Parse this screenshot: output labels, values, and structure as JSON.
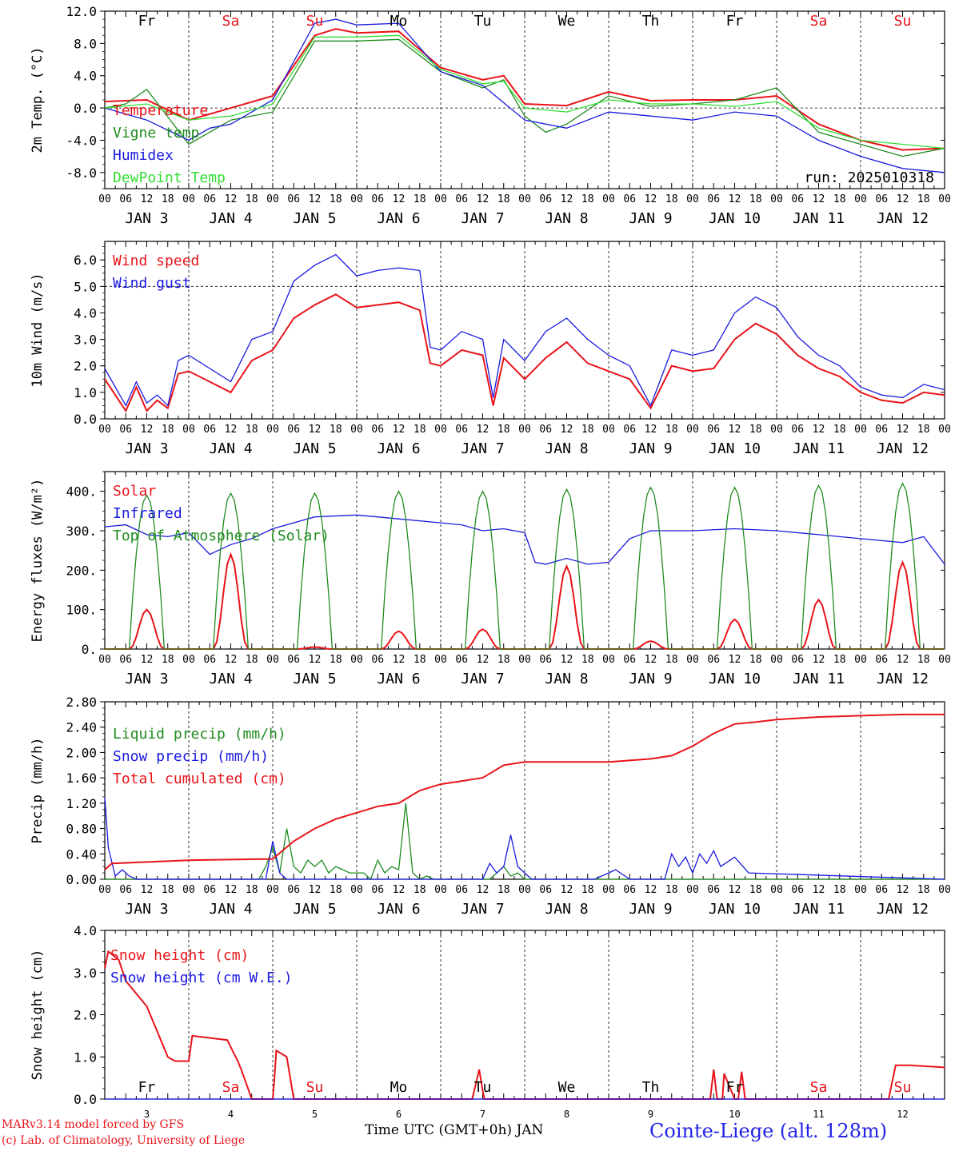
{
  "colors": {
    "red": "#e8141a",
    "green": "#1f8c1f",
    "blue": "#1a1ae0",
    "lightgreen": "#33dd33",
    "weekend": "#e8141a",
    "weekday": "#000000",
    "station": "#2323e6"
  },
  "days": [
    {
      "abbr": "Fr",
      "weekend": false,
      "date": "JAN   3",
      "num": "3"
    },
    {
      "abbr": "Sa",
      "weekend": true,
      "date": "JAN   4",
      "num": "4"
    },
    {
      "abbr": "Su",
      "weekend": true,
      "date": "JAN   5",
      "num": "5"
    },
    {
      "abbr": "Mo",
      "weekend": false,
      "date": "JAN   6",
      "num": "6"
    },
    {
      "abbr": "Tu",
      "weekend": false,
      "date": "JAN   7",
      "num": "7"
    },
    {
      "abbr": "We",
      "weekend": false,
      "date": "JAN   8",
      "num": "8"
    },
    {
      "abbr": "Th",
      "weekend": false,
      "date": "JAN   9",
      "num": "9"
    },
    {
      "abbr": "Fr",
      "weekend": false,
      "date": "JAN  10",
      "num": "10"
    },
    {
      "abbr": "Sa",
      "weekend": true,
      "date": "JAN  11",
      "num": "11"
    },
    {
      "abbr": "Su",
      "weekend": true,
      "date": "JAN  12",
      "num": "12"
    }
  ],
  "hour_ticks": [
    "00",
    "06",
    "12",
    "18"
  ],
  "chart_data": [
    {
      "type": "line",
      "ylabel": "2m Temp. (°C)",
      "ylim": [
        -10,
        12
      ],
      "yticks": [
        -8,
        -4,
        0,
        4,
        8,
        12
      ],
      "ytick_labels": [
        "-8.0",
        "-4.0",
        "0.0",
        "4.0",
        "8.0",
        "12.0"
      ],
      "ref_line": 0,
      "run_label": "run: 2025010318",
      "x_unit": "hours since JAN 3 00 UTC",
      "series": [
        {
          "name": "Temperature",
          "color": "red",
          "x": [
            0,
            12,
            24,
            36,
            48,
            60,
            66,
            72,
            84,
            96,
            108,
            114,
            120,
            132,
            144,
            156,
            168,
            180,
            192,
            204,
            216,
            228,
            240
          ],
          "values": [
            0.8,
            1.0,
            -1.5,
            0.0,
            1.5,
            9.0,
            9.8,
            9.3,
            9.5,
            5.0,
            3.5,
            4.0,
            0.5,
            0.3,
            2.0,
            0.9,
            1.0,
            1.0,
            1.5,
            -2.0,
            -4.0,
            -5.2,
            -5.0
          ]
        },
        {
          "name": "Vigne temp",
          "color": "green",
          "x": [
            0,
            6,
            12,
            24,
            36,
            48,
            60,
            72,
            84,
            96,
            108,
            114,
            120,
            126,
            132,
            144,
            156,
            168,
            180,
            192,
            204,
            216,
            228,
            240
          ],
          "values": [
            0.0,
            0.5,
            2.3,
            -4.5,
            -1.5,
            -0.5,
            8.3,
            8.3,
            8.5,
            4.5,
            2.5,
            3.5,
            -1.0,
            -3.0,
            -2.0,
            1.5,
            0.2,
            0.5,
            1.0,
            2.5,
            -3.0,
            -4.5,
            -6.0,
            -5.0
          ]
        },
        {
          "name": "Humidex",
          "color": "blue",
          "x": [
            0,
            12,
            24,
            30,
            36,
            48,
            60,
            66,
            72,
            84,
            96,
            108,
            120,
            132,
            144,
            156,
            168,
            180,
            192,
            204,
            216,
            228,
            240
          ],
          "values": [
            0.0,
            -1.5,
            -4.0,
            -2.5,
            -2.0,
            1.0,
            10.5,
            11.0,
            10.3,
            10.5,
            4.5,
            2.8,
            -1.5,
            -2.5,
            -0.5,
            -1.0,
            -1.5,
            -0.5,
            -1.0,
            -4.0,
            -6.0,
            -7.5,
            -8.0
          ]
        },
        {
          "name": "DewPoint Temp",
          "color": "lightgreen",
          "x": [
            0,
            12,
            24,
            36,
            48,
            60,
            72,
            84,
            96,
            108,
            114,
            120,
            132,
            144,
            156,
            168,
            180,
            192,
            204,
            216,
            228,
            240
          ],
          "values": [
            0.0,
            0.5,
            -1.5,
            -1.0,
            0.5,
            8.8,
            8.8,
            9.0,
            4.8,
            3.0,
            3.3,
            0.0,
            -0.5,
            1.0,
            0.5,
            0.5,
            0.2,
            0.8,
            -2.5,
            -4.0,
            -4.5,
            -5.0
          ]
        }
      ]
    },
    {
      "type": "line",
      "ylabel": "10m Wind (m/s)",
      "ylim": [
        0,
        6.7
      ],
      "yticks": [
        0,
        1,
        2,
        3,
        4,
        5,
        6
      ],
      "ytick_labels": [
        "0.0",
        "1.0",
        "2.0",
        "3.0",
        "4.0",
        "5.0",
        "6.0"
      ],
      "ref_line": 5,
      "x_unit": "hours since JAN 3 00 UTC",
      "series": [
        {
          "name": "Wind speed",
          "color": "red",
          "x": [
            0,
            3,
            6,
            9,
            12,
            15,
            18,
            21,
            24,
            30,
            36,
            42,
            48,
            54,
            60,
            66,
            72,
            78,
            84,
            90,
            93,
            96,
            102,
            108,
            111,
            114,
            120,
            126,
            132,
            138,
            144,
            150,
            156,
            162,
            168,
            174,
            180,
            186,
            192,
            198,
            204,
            210,
            216,
            222,
            228,
            234,
            240
          ],
          "values": [
            1.5,
            0.9,
            0.3,
            1.2,
            0.3,
            0.7,
            0.4,
            1.7,
            1.8,
            1.4,
            1.0,
            2.2,
            2.6,
            3.8,
            4.3,
            4.7,
            4.2,
            4.3,
            4.4,
            4.1,
            2.1,
            2.0,
            2.6,
            2.4,
            0.5,
            2.3,
            1.5,
            2.3,
            2.9,
            2.1,
            1.8,
            1.5,
            0.4,
            2.0,
            1.8,
            1.9,
            3.0,
            3.6,
            3.2,
            2.4,
            1.9,
            1.6,
            1.0,
            0.7,
            0.6,
            1.0,
            0.9
          ]
        },
        {
          "name": "Wind gust",
          "color": "blue",
          "x": [
            0,
            3,
            6,
            9,
            12,
            15,
            18,
            21,
            24,
            30,
            36,
            42,
            48,
            54,
            60,
            66,
            72,
            78,
            84,
            90,
            93,
            96,
            102,
            108,
            111,
            114,
            120,
            126,
            132,
            138,
            144,
            150,
            156,
            162,
            168,
            174,
            180,
            186,
            192,
            198,
            204,
            210,
            216,
            222,
            228,
            234,
            240
          ],
          "values": [
            1.9,
            1.2,
            0.5,
            1.4,
            0.6,
            0.9,
            0.5,
            2.2,
            2.4,
            1.9,
            1.4,
            3.0,
            3.3,
            5.2,
            5.8,
            6.2,
            5.4,
            5.6,
            5.7,
            5.6,
            2.7,
            2.6,
            3.3,
            3.0,
            0.8,
            3.0,
            2.2,
            3.3,
            3.8,
            3.0,
            2.4,
            2.0,
            0.5,
            2.6,
            2.4,
            2.6,
            4.0,
            4.6,
            4.2,
            3.1,
            2.4,
            2.0,
            1.2,
            0.9,
            0.8,
            1.3,
            1.1
          ]
        }
      ]
    },
    {
      "type": "line",
      "ylabel": "Energy fluxes (W/m²)",
      "ylim": [
        0,
        450
      ],
      "yticks": [
        0,
        100,
        200,
        300,
        400
      ],
      "ytick_labels": [
        "0.",
        "100.",
        "200.",
        "300.",
        "400."
      ],
      "x_unit": "hours since JAN 3 00 UTC",
      "series": [
        {
          "name": "Solar",
          "color": "red",
          "peaks": [
            100,
            240,
            5,
            45,
            50,
            210,
            20,
            75,
            125,
            220
          ]
        },
        {
          "name": "Infrared",
          "color": "blue",
          "x": [
            0,
            6,
            12,
            18,
            24,
            30,
            36,
            42,
            48,
            60,
            72,
            84,
            96,
            102,
            108,
            114,
            120,
            123,
            126,
            132,
            138,
            144,
            150,
            156,
            168,
            180,
            192,
            204,
            216,
            228,
            234,
            240
          ],
          "values": [
            310,
            315,
            290,
            285,
            295,
            240,
            265,
            280,
            305,
            335,
            340,
            330,
            320,
            315,
            300,
            305,
            295,
            220,
            215,
            230,
            215,
            220,
            280,
            300,
            300,
            305,
            300,
            290,
            280,
            270,
            285,
            215
          ]
        },
        {
          "name": "Top of Atmosphere (Solar)",
          "color": "green",
          "peaks": [
            390,
            395,
            395,
            400,
            400,
            405,
            410,
            410,
            415,
            420
          ]
        }
      ]
    },
    {
      "type": "line",
      "ylabel": "Precip (mm/h)",
      "ylim": [
        0,
        2.8
      ],
      "yticks": [
        0,
        0.4,
        0.8,
        1.2,
        1.6,
        2.0,
        2.4,
        2.8
      ],
      "ytick_labels": [
        "0.00",
        "0.40",
        "0.80",
        "1.20",
        "1.60",
        "2.00",
        "2.40",
        "2.80"
      ],
      "x_unit": "hours since JAN 3 00 UTC",
      "series": [
        {
          "name": "Liquid precip (mm/h)",
          "color": "green",
          "x": [
            0,
            44,
            46,
            48,
            50,
            52,
            54,
            56,
            58,
            60,
            62,
            64,
            66,
            68,
            70,
            72,
            74,
            76,
            78,
            80,
            82,
            84,
            86,
            88,
            90,
            92,
            94,
            96,
            110,
            112,
            114,
            116,
            118,
            120,
            240
          ],
          "values": [
            0,
            0,
            0.2,
            0.5,
            0.1,
            0.8,
            0.2,
            0.1,
            0.3,
            0.2,
            0.3,
            0.1,
            0.2,
            0.15,
            0.1,
            0.1,
            0.1,
            0.0,
            0.3,
            0.1,
            0.2,
            0.15,
            1.2,
            0.1,
            0.0,
            0.05,
            0,
            0,
            0,
            0.1,
            0.2,
            0.05,
            0.1,
            0,
            0
          ]
        },
        {
          "name": "Snow precip (mm/h)",
          "color": "blue",
          "x": [
            0,
            1,
            3,
            5,
            7,
            9,
            20,
            46,
            48,
            50,
            52,
            54,
            108,
            110,
            112,
            114,
            116,
            118,
            120,
            122,
            140,
            144,
            146,
            150,
            160,
            162,
            164,
            166,
            168,
            170,
            172,
            174,
            176,
            180,
            184,
            240
          ],
          "values": [
            1.3,
            0.5,
            0.05,
            0.15,
            0.05,
            0,
            0,
            0,
            0.6,
            0.1,
            0,
            0,
            0,
            0.25,
            0.1,
            0.2,
            0.7,
            0.2,
            0.1,
            0,
            0,
            0.1,
            0.15,
            0,
            0,
            0.4,
            0.2,
            0.35,
            0.1,
            0.4,
            0.25,
            0.45,
            0.2,
            0.35,
            0.1,
            0
          ]
        },
        {
          "name": "Total cumulated (cm)",
          "color": "red",
          "x": [
            0,
            2,
            24,
            48,
            54,
            60,
            66,
            72,
            78,
            84,
            90,
            96,
            102,
            108,
            114,
            120,
            132,
            144,
            156,
            162,
            168,
            174,
            180,
            186,
            192,
            204,
            216,
            228,
            240
          ],
          "values": [
            0.15,
            0.25,
            0.3,
            0.32,
            0.6,
            0.8,
            0.95,
            1.05,
            1.15,
            1.2,
            1.4,
            1.5,
            1.55,
            1.6,
            1.8,
            1.85,
            1.85,
            1.85,
            1.9,
            1.95,
            2.1,
            2.3,
            2.45,
            2.48,
            2.52,
            2.56,
            2.58,
            2.6,
            2.6
          ]
        }
      ]
    },
    {
      "type": "line",
      "ylabel": "Snow height (cm)",
      "ylim": [
        0,
        4
      ],
      "yticks": [
        0,
        1,
        2,
        3,
        4
      ],
      "ytick_labels": [
        "0.0",
        "1.0",
        "2.0",
        "3.0",
        "4.0"
      ],
      "x_unit": "hours since JAN 3 00 UTC",
      "series": [
        {
          "name": "Snow height (cm)",
          "color": "red",
          "x": [
            0,
            1,
            4,
            6,
            12,
            18,
            20,
            22,
            24,
            25,
            30,
            35,
            38,
            39,
            42,
            48,
            48.5,
            49,
            50,
            52,
            54,
            105,
            106,
            107,
            108,
            108.5,
            109,
            114,
            173,
            174,
            175,
            176,
            176.5,
            177,
            180,
            181,
            182,
            183,
            184,
            224,
            226,
            230,
            240
          ],
          "values": [
            3.1,
            3.5,
            3.3,
            2.8,
            2.2,
            1.0,
            0.9,
            0.9,
            0.9,
            1.5,
            1.45,
            1.4,
            0.9,
            0.7,
            0,
            0,
            0.5,
            1.15,
            1.1,
            1.0,
            0,
            0,
            0.35,
            0.7,
            0.2,
            0,
            0,
            0,
            0,
            0.7,
            0,
            0,
            0,
            0.6,
            0,
            0,
            0.65,
            0,
            0,
            0,
            0.8,
            0.8,
            0.75
          ]
        },
        {
          "name": "Snow height (cm W.E.)",
          "color": "blue",
          "x": [
            0,
            240
          ],
          "values": [
            0,
            0
          ]
        }
      ]
    }
  ],
  "footer": {
    "model_line": "MARv3.14 model forced by GFS",
    "credit_line": "(c) Lab. of Climatology, University of Liege",
    "time_label": "Time UTC (GMT+0h) JAN",
    "station": "Cointe-Liege (alt. 128m)"
  }
}
